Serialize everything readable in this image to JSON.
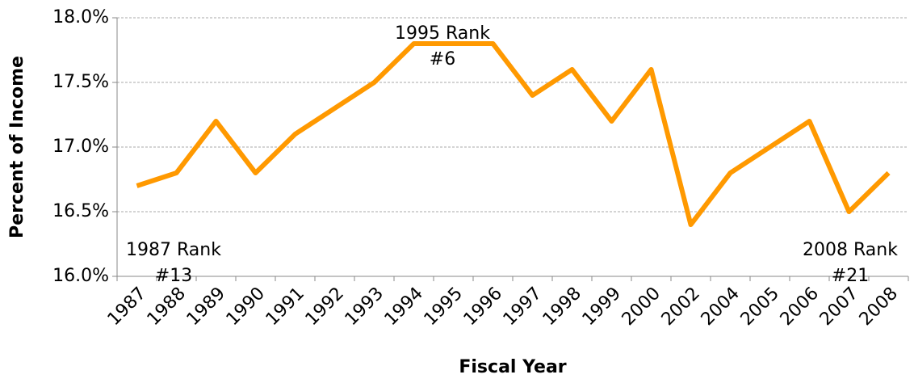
{
  "chart_data": {
    "type": "line",
    "x_label": "Fiscal Year",
    "y_label": "Percent of Income",
    "categories": [
      "1987",
      "1988",
      "1989",
      "1990",
      "1991",
      "1992",
      "1993",
      "1994",
      "1995",
      "1996",
      "1997",
      "1998",
      "1999",
      "2000",
      "2002",
      "2004",
      "2005",
      "2006",
      "2007",
      "2008"
    ],
    "series": [
      {
        "name": "Percent of Income",
        "color": "#ff9900",
        "values": [
          16.7,
          16.8,
          17.2,
          16.8,
          17.1,
          17.3,
          17.5,
          17.8,
          17.8,
          17.8,
          17.4,
          17.6,
          17.2,
          17.6,
          16.4,
          16.8,
          17.0,
          17.2,
          16.5,
          16.8
        ]
      }
    ],
    "ylim": [
      16,
      18
    ],
    "yticks": [
      {
        "value": 16,
        "label": "16.0%"
      },
      {
        "value": 16.5,
        "label": "16.5%"
      },
      {
        "value": 17,
        "label": "17.0%"
      },
      {
        "value": 17.5,
        "label": "17.5%"
      },
      {
        "value": 18,
        "label": "18.0%"
      }
    ],
    "grid": true,
    "annotations": [
      {
        "lines": [
          "1987 Rank",
          "#13"
        ]
      },
      {
        "lines": [
          "1995 Rank",
          "#6"
        ]
      },
      {
        "lines": [
          "2008 Rank",
          "#21"
        ]
      }
    ]
  }
}
